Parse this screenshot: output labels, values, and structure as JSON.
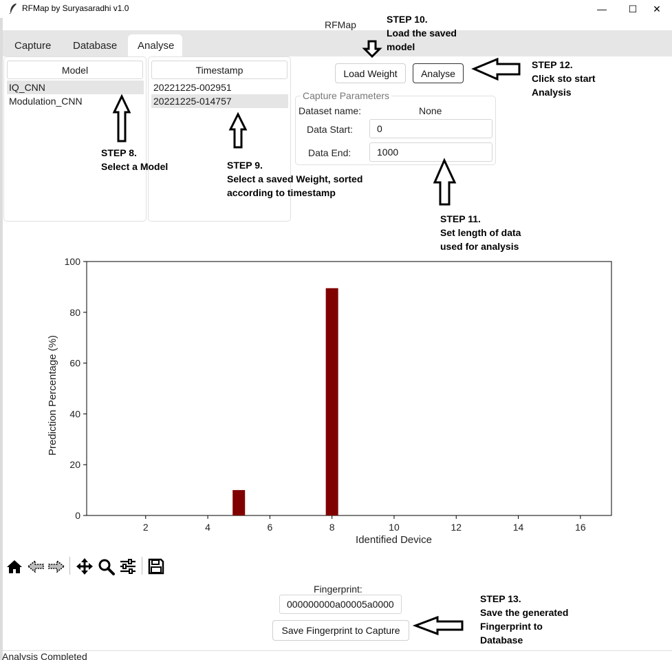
{
  "window": {
    "title": "RFMap by Suryasaradhi v1.0",
    "minimize_glyph": "—",
    "maximize_glyph": "☐",
    "close_glyph": "✕",
    "icon": "feather-icon"
  },
  "app_label": "RFMap",
  "tabs": [
    {
      "label": "Capture"
    },
    {
      "label": "Database"
    },
    {
      "label": "Analyse",
      "active": true
    }
  ],
  "model_list": {
    "header": "Model",
    "items": [
      "IQ_CNN",
      "Modulation_CNN"
    ],
    "selected": 0
  },
  "timestamp_list": {
    "header": "Timestamp",
    "items": [
      "20221225-002951",
      "20221225-014757"
    ],
    "selected": 1
  },
  "buttons": {
    "load_weight": "Load Weight",
    "analyse": "Analyse",
    "save_fingerprint": "Save Fingerprint to Capture"
  },
  "capture_params": {
    "title": "Capture Parameters",
    "dataset_label": "Dataset name:",
    "dataset_value": "None",
    "start_label": "Data Start:",
    "start_value": "0",
    "end_label": "Data End:",
    "end_value": "1000"
  },
  "annotations": {
    "step8": "STEP 8.\nSelect a Model",
    "step9": "STEP 9.\nSelect a saved Weight, sorted\naccording to timestamp",
    "step10": "STEP 10.\nLoad the saved\nmodel",
    "step11": "STEP 11.\nSet length of data\nused for analysis",
    "step12": "STEP 12.\nClick sto start\nAnalysis",
    "step13": "STEP 13.\nSave the generated\nFingerprint to\nDatabase"
  },
  "chart_data": {
    "type": "bar",
    "x": [
      5,
      8
    ],
    "values": [
      10,
      89.5
    ],
    "xlabel": "Identified Device",
    "ylabel": "Prediction Percentage (%)",
    "xlim": [
      0.1,
      17
    ],
    "ylim": [
      0,
      100
    ],
    "xticks": [
      2,
      4,
      6,
      8,
      10,
      12,
      14,
      16
    ],
    "yticks": [
      0,
      20,
      40,
      60,
      80,
      100
    ],
    "bar_color": "#800000",
    "grid": false
  },
  "toolbar": {
    "tools": [
      "home-icon",
      "back-icon",
      "forward-icon",
      "pan-icon",
      "zoom-icon",
      "configure-icon",
      "save-icon"
    ]
  },
  "fingerprint": {
    "label": "Fingerprint:",
    "value": "000000000a00005a0000"
  },
  "status": "Analysis Completed"
}
